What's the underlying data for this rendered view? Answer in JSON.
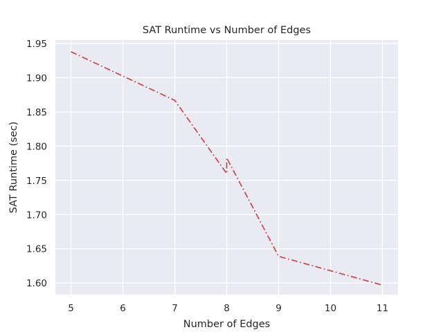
{
  "chart_data": {
    "type": "line",
    "title": "SAT Runtime vs Number of Edges",
    "xlabel": "Number of Edges",
    "ylabel": "SAT Runtime (sec)",
    "xlim": [
      4.7,
      11.3
    ],
    "ylim": [
      1.583,
      1.955
    ],
    "x_ticks": [
      5,
      6,
      7,
      8,
      9,
      10,
      11
    ],
    "y_ticks": [
      1.6,
      1.65,
      1.7,
      1.75,
      1.8,
      1.85,
      1.9,
      1.95
    ],
    "y_tick_labels": [
      "1.60",
      "1.65",
      "1.70",
      "1.75",
      "1.80",
      "1.85",
      "1.90",
      "1.95"
    ],
    "grid": true,
    "series": [
      {
        "name": "SAT Runtime",
        "color": "#c44e52",
        "line_style": "dash-dot",
        "x": [
          5,
          7,
          8,
          8,
          9,
          11
        ],
        "y": [
          1.938,
          1.867,
          1.76,
          1.783,
          1.639,
          1.597
        ]
      }
    ]
  },
  "colors": {
    "plot_background": "#eaeaf2",
    "grid": "#ffffff",
    "text": "#262626"
  }
}
